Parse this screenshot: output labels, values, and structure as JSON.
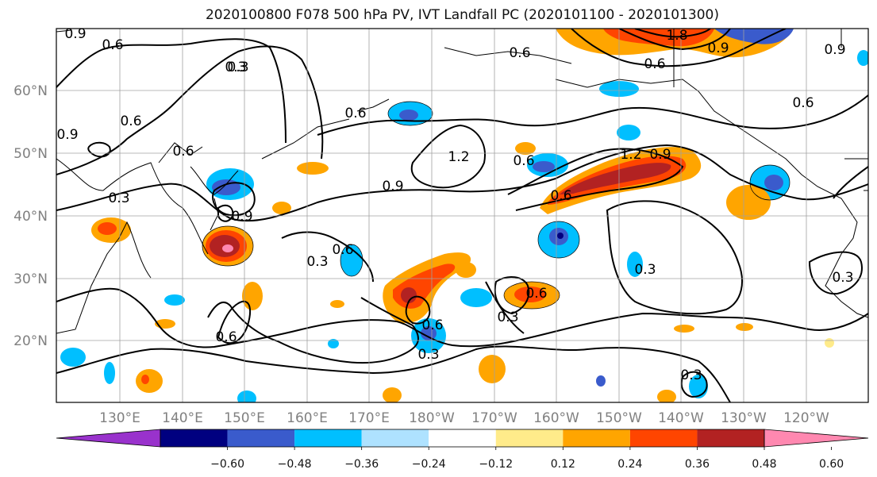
{
  "title": "2020100800 F078 500 hPa PV, IVT Landfall PC (2020101100 - 2020101300)",
  "lat_labels": [
    "60°N",
    "50°N",
    "40°N",
    "30°N",
    "20°N"
  ],
  "lon_labels": [
    "130°E",
    "140°E",
    "150°E",
    "160°E",
    "170°E",
    "180°W",
    "170°W",
    "160°W",
    "150°W",
    "140°W",
    "130°W",
    "120°W"
  ],
  "colorbar": {
    "tick_labels": [
      "−0.60",
      "−0.48",
      "−0.36",
      "−0.24",
      "−0.12",
      "0.12",
      "0.24",
      "0.36",
      "0.48",
      "0.60"
    ],
    "colors": [
      "#9932cc",
      "#000080",
      "#3a5bcc",
      "#00bfff",
      "#aee2ff",
      "#ffffff",
      "#ffeb8a",
      "#ffa500",
      "#ff4500",
      "#b22222",
      "#ff88b0"
    ]
  },
  "contour_labels": [
    "0.9",
    "0.6",
    "0.3",
    "0.6",
    "0.9",
    "0.6",
    "0.3",
    "0.6",
    "1.2",
    "0.6",
    "1.2",
    "0.9",
    "0.6",
    "0.6",
    "0.6",
    "0.9",
    "0.3",
    "0.9",
    "0.3",
    "0.6",
    "0.3",
    "0.6",
    "0.3",
    "0.6",
    "0.3",
    "0.3",
    "0.3",
    "1.8",
    "0.9",
    "0.6",
    "0.9",
    "0.6"
  ]
}
